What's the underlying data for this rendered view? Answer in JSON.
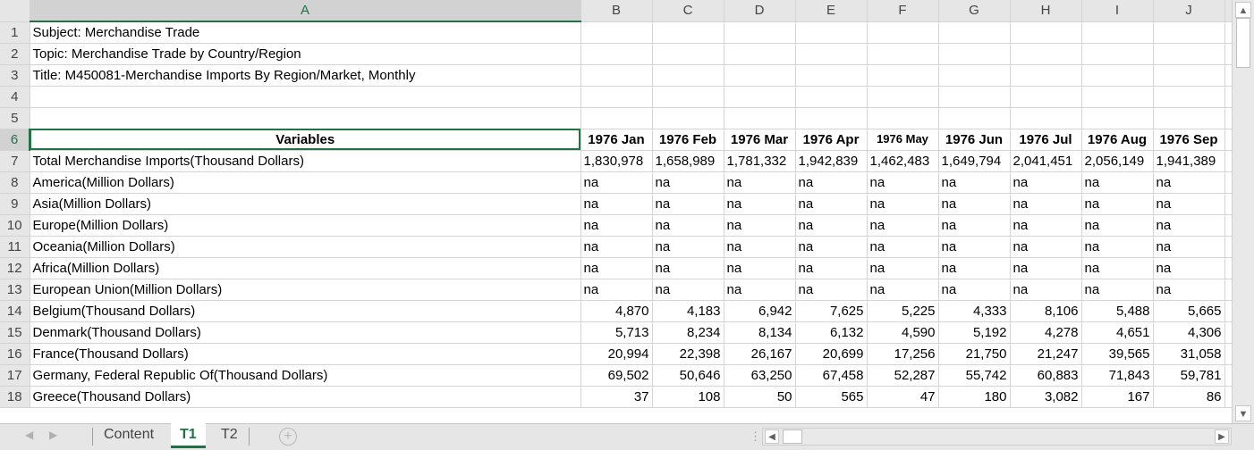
{
  "columns": [
    "A",
    "B",
    "C",
    "D",
    "E",
    "F",
    "G",
    "H",
    "I",
    "J"
  ],
  "rows": [
    {
      "n": "1",
      "a": "Subject: Merchandise Trade",
      "vals": []
    },
    {
      "n": "2",
      "a": "Topic: Merchandise Trade by Country/Region",
      "vals": []
    },
    {
      "n": "3",
      "a": "Title: M450081-Merchandise Imports By Region/Market, Monthly",
      "vals": []
    },
    {
      "n": "4",
      "a": "",
      "vals": []
    },
    {
      "n": "5",
      "a": "",
      "vals": []
    },
    {
      "n": "6",
      "a": "Variables",
      "vals": [
        "1976 Jan",
        "1976 Feb",
        "1976 Mar",
        "1976 Apr",
        "1976 May",
        "1976 Jun",
        "1976 Jul",
        "1976 Aug",
        "1976 Sep"
      ]
    },
    {
      "n": "7",
      "a": "Total Merchandise Imports(Thousand Dollars)",
      "vals": [
        "1,830,978",
        "1,658,989",
        "1,781,332",
        "1,942,839",
        "1,462,483",
        "1,649,794",
        "2,041,451",
        "2,056,149",
        "1,941,389"
      ]
    },
    {
      "n": "8",
      "a": "America(Million Dollars)",
      "vals": [
        "na",
        "na",
        "na",
        "na",
        "na",
        "na",
        "na",
        "na",
        "na"
      ]
    },
    {
      "n": "9",
      "a": "Asia(Million Dollars)",
      "vals": [
        "na",
        "na",
        "na",
        "na",
        "na",
        "na",
        "na",
        "na",
        "na"
      ]
    },
    {
      "n": "10",
      "a": "Europe(Million Dollars)",
      "vals": [
        "na",
        "na",
        "na",
        "na",
        "na",
        "na",
        "na",
        "na",
        "na"
      ]
    },
    {
      "n": "11",
      "a": "Oceania(Million Dollars)",
      "vals": [
        "na",
        "na",
        "na",
        "na",
        "na",
        "na",
        "na",
        "na",
        "na"
      ]
    },
    {
      "n": "12",
      "a": "Africa(Million Dollars)",
      "vals": [
        "na",
        "na",
        "na",
        "na",
        "na",
        "na",
        "na",
        "na",
        "na"
      ]
    },
    {
      "n": "13",
      "a": "European Union(Million Dollars)",
      "vals": [
        "na",
        "na",
        "na",
        "na",
        "na",
        "na",
        "na",
        "na",
        "na"
      ]
    },
    {
      "n": "14",
      "a": "Belgium(Thousand Dollars)",
      "vals": [
        "4,870",
        "4,183",
        "6,942",
        "7,625",
        "5,225",
        "4,333",
        "8,106",
        "5,488",
        "5,665"
      ]
    },
    {
      "n": "15",
      "a": "Denmark(Thousand Dollars)",
      "vals": [
        "5,713",
        "8,234",
        "8,134",
        "6,132",
        "4,590",
        "5,192",
        "4,278",
        "4,651",
        "4,306"
      ]
    },
    {
      "n": "16",
      "a": "France(Thousand Dollars)",
      "vals": [
        "20,994",
        "22,398",
        "26,167",
        "20,699",
        "17,256",
        "21,750",
        "21,247",
        "39,565",
        "31,058"
      ]
    },
    {
      "n": "17",
      "a": "Germany, Federal Republic Of(Thousand Dollars)",
      "vals": [
        "69,502",
        "50,646",
        "63,250",
        "67,458",
        "52,287",
        "55,742",
        "60,883",
        "71,843",
        "59,781"
      ]
    },
    {
      "n": "18",
      "a": "Greece(Thousand Dollars)",
      "vals": [
        "37",
        "108",
        "50",
        "565",
        "47",
        "180",
        "3,082",
        "167",
        "86"
      ]
    }
  ],
  "tabs": {
    "t0": "Content",
    "t1": "T1",
    "t2": "T2"
  },
  "icons": {
    "add": "+",
    "up": "▲",
    "down": "▼",
    "left": "◀",
    "right": "▶"
  },
  "accent": "#217346"
}
